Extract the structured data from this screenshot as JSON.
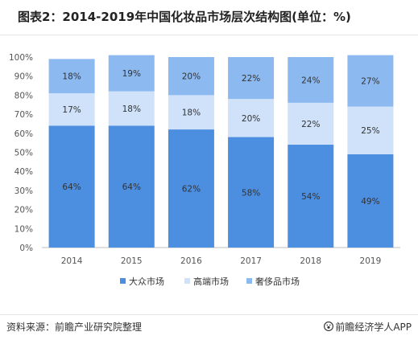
{
  "header": {
    "title": "图表2：2014-2019年中国化妆品市场层次结构图(单位：%)"
  },
  "chart_data": {
    "type": "bar",
    "stacked": true,
    "title": "图表2：2014-2019年中国化妆品市场层次结构图(单位：%)",
    "xlabel": "",
    "ylabel": "",
    "categories": [
      "2014",
      "2015",
      "2016",
      "2017",
      "2018",
      "2019"
    ],
    "series": [
      {
        "name": "大众市场",
        "values": [
          64,
          64,
          62,
          58,
          54,
          49
        ],
        "color": "#4c8ee0"
      },
      {
        "name": "高端市场",
        "values": [
          17,
          18,
          18,
          20,
          22,
          25
        ],
        "color": "#cfe2fa"
      },
      {
        "name": "奢侈品市场",
        "values": [
          18,
          19,
          20,
          22,
          24,
          27
        ],
        "color": "#8cb9ef"
      }
    ],
    "ylim": [
      0,
      100
    ],
    "yticks": [
      "0%",
      "10%",
      "20%",
      "30%",
      "40%",
      "50%",
      "60%",
      "70%",
      "80%",
      "90%",
      "100%"
    ],
    "grid": false,
    "legend_position": "bottom"
  },
  "footer": {
    "source": "资料来源：前瞻产业研究院整理",
    "brand": "前瞻经济学人APP"
  },
  "icons": {
    "brand": "paw-icon"
  }
}
